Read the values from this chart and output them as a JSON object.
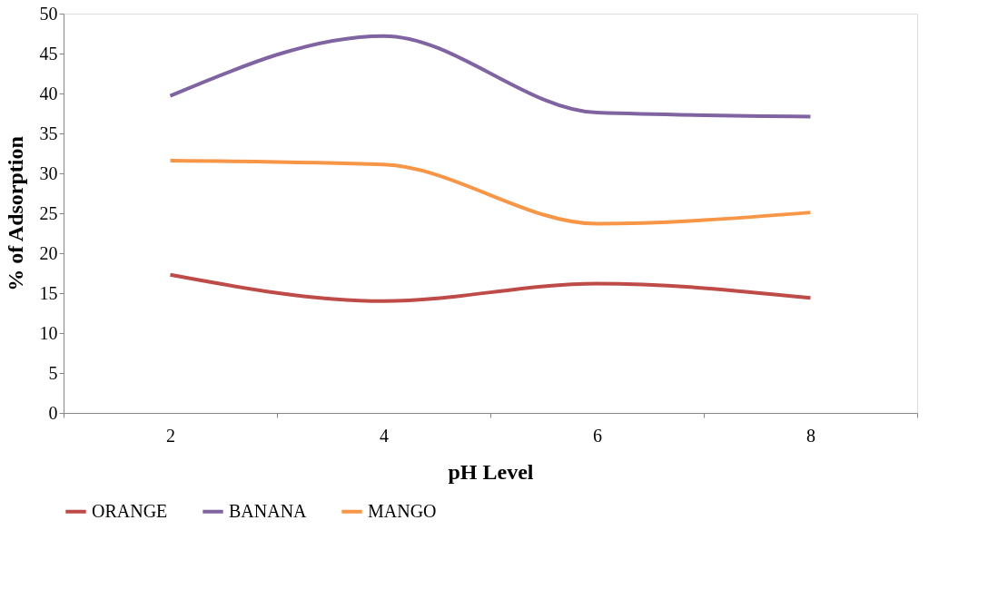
{
  "chart_data": {
    "type": "line",
    "xlabel": "pH Level",
    "ylabel": "% of Adsorption",
    "categories": [
      "2",
      "4",
      "6",
      "8"
    ],
    "series": [
      {
        "name": "ORANGE",
        "color": "#be4b48",
        "values": [
          17.3,
          14.0,
          16.2,
          14.4
        ]
      },
      {
        "name": "BANANA",
        "color": "#7f64a1",
        "values": [
          39.7,
          47.2,
          37.6,
          37.1
        ]
      },
      {
        "name": "MANGO",
        "color": "#f79646",
        "values": [
          31.6,
          31.1,
          23.7,
          25.1
        ]
      }
    ],
    "ylim": [
      0,
      50
    ],
    "yticks": [
      0,
      5,
      10,
      15,
      20,
      25,
      30,
      35,
      40,
      45,
      50
    ],
    "grid": false,
    "legend": "bottom",
    "marker": "none",
    "line_style": "solid"
  }
}
